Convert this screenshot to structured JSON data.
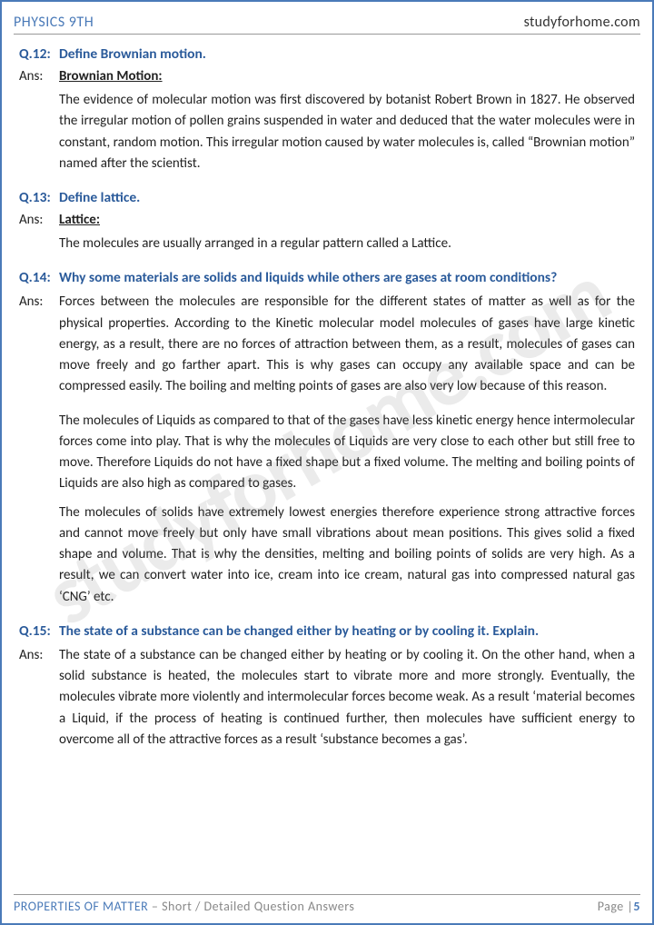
{
  "header": {
    "left": "PHYSICS 9TH",
    "right": "studyforhome.com"
  },
  "watermark": "studyforhome.com",
  "questions": [
    {
      "num": "Q.12:",
      "text": "Define Brownian motion.",
      "ans_label": "Ans:",
      "ans_heading": "Brownian Motion:",
      "paragraphs": [
        "The evidence of molecular motion was first discovered by botanist Robert Brown in 1827. He observed the irregular motion of pollen grains suspended in water and deduced that the water molecules were in constant, random motion. This irregular motion caused by water molecules is, called “Brownian motion” named after the scientist."
      ]
    },
    {
      "num": "Q.13:",
      "text": "Define lattice.",
      "ans_label": "Ans:",
      "ans_heading": "Lattice:",
      "paragraphs": [
        "The molecules are usually arranged in a regular pattern called a Lattice."
      ]
    },
    {
      "num": "Q.14:",
      "text": "Why some materials are solids and liquids while others are gases at room conditions?",
      "ans_label": "Ans:",
      "ans_heading": "",
      "paragraphs": [
        "Forces between the molecules are responsible for the different states of matter as well as for the physical properties. According to the Kinetic molecular model molecules of gases have large kinetic energy, as a result, there are no forces of attraction between them, as a result, molecules of gases can move freely and go farther apart. This is why gases can occupy any available space and can be compressed easily. The boiling and melting points of gases are also very low because of this reason.",
        "The molecules of Liquids as compared to that of the gases have less kinetic energy hence intermolecular forces come into play. That is why the molecules of Liquids are very close to each other but still free to move. Therefore Liquids do not have a fixed shape but a fixed volume. The melting and boiling points of Liquids are also high as compared to gases.",
        "The molecules of solids have extremely lowest energies therefore experience strong attractive forces and cannot move freely but only have small vibrations about mean positions. This gives solid a fixed shape and volume. That is why the densities, melting and boiling points of solids are very high. As a result, we can convert water into ice, cream into ice cream, natural gas into compressed natural gas ‘CNG’ etc."
      ]
    },
    {
      "num": "Q.15:",
      "text": "The state of a substance can be changed either by heating or by cooling it. Explain.",
      "ans_label": "Ans:",
      "ans_heading": "",
      "paragraphs": [
        "The state of a substance can be changed either by heating or by cooling it. On the other hand, when a solid substance is heated, the molecules start to vibrate more and more strongly. Eventually, the molecules vibrate more violently and intermolecular forces become weak. As a result ‘material becomes a Liquid, if the process of heating is continued further, then molecules have sufficient energy to overcome all of the attractive forces as a result ‘substance becomes a gas’."
      ]
    }
  ],
  "footer": {
    "title_a": "PROPERTIES OF MATTER",
    "title_b": " – Short / Detailed Question Answers",
    "page_label": "Page |",
    "page_num": "5"
  },
  "colors": {
    "border": "#4a7ab8",
    "heading": "#2a5a9a",
    "body": "#222222",
    "footer_muted": "#888888",
    "background": "#ffffff"
  }
}
